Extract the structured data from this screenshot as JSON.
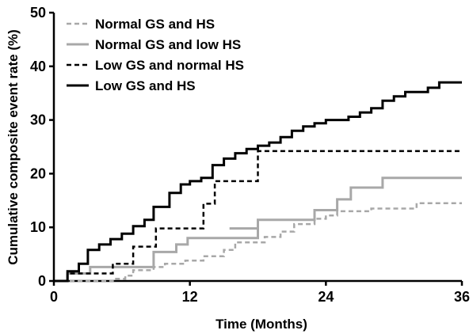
{
  "chart_data": {
    "type": "line",
    "step": true,
    "xlabel": "Time (Months)",
    "ylabel": "Cumulative composite event rate (%)",
    "xlim": [
      0,
      36
    ],
    "ylim": [
      0,
      50
    ],
    "xticks": [
      0,
      12,
      24,
      36
    ],
    "yticks": [
      0,
      10,
      20,
      30,
      40,
      50
    ],
    "grid": false,
    "legend_position": "top-left",
    "series": [
      {
        "name": "Normal GS and HS",
        "style": "dashed",
        "color": "#a8a8a8",
        "points": [
          [
            0,
            0
          ],
          [
            5.2,
            0
          ],
          [
            5.2,
            0.4
          ],
          [
            6.3,
            0.4
          ],
          [
            6.3,
            1
          ],
          [
            7,
            1
          ],
          [
            7,
            2
          ],
          [
            8.8,
            2
          ],
          [
            8.8,
            2.6
          ],
          [
            9.8,
            2.6
          ],
          [
            9.8,
            3.2
          ],
          [
            11.6,
            3.2
          ],
          [
            11.6,
            3.8
          ],
          [
            13.2,
            3.8
          ],
          [
            13.2,
            4.6
          ],
          [
            15,
            4.6
          ],
          [
            15,
            5.8
          ],
          [
            16,
            5.8
          ],
          [
            16,
            7.2
          ],
          [
            18.6,
            7.2
          ],
          [
            18.6,
            8.2
          ],
          [
            20,
            8.2
          ],
          [
            20,
            9.2
          ],
          [
            21.2,
            9.2
          ],
          [
            21.2,
            10.6
          ],
          [
            23,
            10.6
          ],
          [
            23,
            11.6
          ],
          [
            24,
            11.6
          ],
          [
            24,
            12.2
          ],
          [
            25,
            12.2
          ],
          [
            25,
            13
          ],
          [
            28,
            13
          ],
          [
            28,
            13.5
          ],
          [
            32,
            13.5
          ],
          [
            32,
            14.5
          ],
          [
            36,
            14.5
          ]
        ]
      },
      {
        "name": "Normal GS and low HS",
        "style": "solid",
        "color": "#a8a8a8",
        "points": [
          [
            0,
            0
          ],
          [
            1.2,
            0
          ],
          [
            1.2,
            1.4
          ],
          [
            3.2,
            1.4
          ],
          [
            3.2,
            2.6
          ],
          [
            8.8,
            2.6
          ],
          [
            8.8,
            5.4
          ],
          [
            10.8,
            5.4
          ],
          [
            10.8,
            6.8
          ],
          [
            11.8,
            6.8
          ],
          [
            11.8,
            8
          ],
          [
            18,
            8
          ],
          [
            18,
            9.8
          ],
          [
            15.5,
            9.8
          ],
          [
            15.5,
            9.8
          ],
          [
            18,
            9.8
          ],
          [
            18,
            11.4
          ],
          [
            23,
            11.4
          ],
          [
            23,
            13.2
          ],
          [
            25,
            13.2
          ],
          [
            25,
            15.2
          ],
          [
            26.2,
            15.2
          ],
          [
            26.2,
            17.4
          ],
          [
            29,
            17.4
          ],
          [
            29,
            19.2
          ],
          [
            36,
            19.2
          ]
        ]
      },
      {
        "name": "Low GS and normal HS",
        "style": "dashed",
        "color": "#000000",
        "points": [
          [
            0,
            0
          ],
          [
            1.2,
            0
          ],
          [
            1.2,
            1.4
          ],
          [
            3.5,
            1.4
          ],
          [
            3.5,
            1.4
          ],
          [
            5.2,
            1.4
          ],
          [
            5.2,
            3.2
          ],
          [
            7,
            3.2
          ],
          [
            7,
            6.4
          ],
          [
            9,
            6.4
          ],
          [
            9,
            9.8
          ],
          [
            13.2,
            9.8
          ],
          [
            13.2,
            14.4
          ],
          [
            14.2,
            14.4
          ],
          [
            14.2,
            18.6
          ],
          [
            18,
            18.6
          ],
          [
            18,
            24.2
          ],
          [
            36,
            24.2
          ]
        ]
      },
      {
        "name": "Low GS and HS",
        "style": "solid",
        "color": "#000000",
        "points": [
          [
            0,
            0
          ],
          [
            1.2,
            0
          ],
          [
            1.2,
            1.8
          ],
          [
            2.2,
            1.8
          ],
          [
            2.2,
            3.2
          ],
          [
            3,
            3.2
          ],
          [
            3,
            5.8
          ],
          [
            4,
            5.8
          ],
          [
            4,
            6.8
          ],
          [
            5,
            6.8
          ],
          [
            5,
            7.8
          ],
          [
            6,
            7.8
          ],
          [
            6,
            8.8
          ],
          [
            7,
            8.8
          ],
          [
            7,
            10.2
          ],
          [
            8,
            10.2
          ],
          [
            8,
            11.4
          ],
          [
            8.8,
            11.4
          ],
          [
            8.8,
            13.8
          ],
          [
            10.2,
            13.8
          ],
          [
            10.2,
            16.4
          ],
          [
            11.2,
            16.4
          ],
          [
            11.2,
            18
          ],
          [
            12,
            18
          ],
          [
            12,
            18.6
          ],
          [
            13,
            18.6
          ],
          [
            13,
            19.2
          ],
          [
            14,
            19.2
          ],
          [
            14,
            21.6
          ],
          [
            15,
            21.6
          ],
          [
            15,
            22.8
          ],
          [
            16,
            22.8
          ],
          [
            16,
            23.8
          ],
          [
            17,
            23.8
          ],
          [
            17,
            24.6
          ],
          [
            18,
            24.6
          ],
          [
            18,
            25.2
          ],
          [
            19,
            25.2
          ],
          [
            19,
            25.8
          ],
          [
            20,
            25.8
          ],
          [
            20,
            26.8
          ],
          [
            21,
            26.8
          ],
          [
            21,
            28
          ],
          [
            22,
            28
          ],
          [
            22,
            28.8
          ],
          [
            23,
            28.8
          ],
          [
            23,
            29.4
          ],
          [
            24,
            29.4
          ],
          [
            24,
            30
          ],
          [
            26,
            30
          ],
          [
            26,
            30.6
          ],
          [
            27,
            30.6
          ],
          [
            27,
            31.4
          ],
          [
            28,
            31.4
          ],
          [
            28,
            32.2
          ],
          [
            29,
            32.2
          ],
          [
            29,
            33.6
          ],
          [
            30,
            33.6
          ],
          [
            30,
            34.4
          ],
          [
            31,
            34.4
          ],
          [
            31,
            35.2
          ],
          [
            33,
            35.2
          ],
          [
            33,
            36
          ],
          [
            34,
            36
          ],
          [
            34,
            37
          ],
          [
            36,
            37
          ]
        ]
      }
    ]
  }
}
